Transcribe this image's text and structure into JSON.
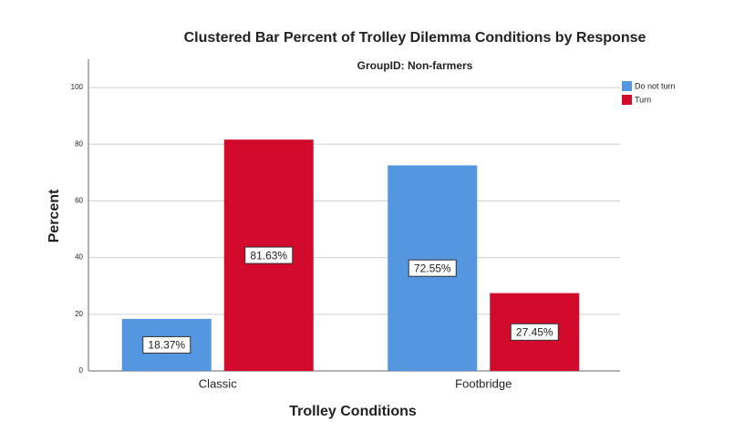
{
  "chart_data": {
    "type": "bar",
    "title": "Clustered Bar Percent of Trolley Dilemma Conditions by Response",
    "subtitle": "GroupID: Non-farmers",
    "x_label": "Trolley Conditions",
    "y_label": "Percent",
    "categories": [
      "Classic",
      "Footbridge"
    ],
    "series": [
      {
        "name": "Do not turn",
        "color": "#5596e0",
        "values": [
          18.37,
          72.55
        ],
        "value_labels": [
          "18.37%",
          "72.55%"
        ]
      },
      {
        "name": "Turn",
        "color": "#d20b2c",
        "values": [
          81.63,
          27.45
        ],
        "value_labels": [
          "81.63%",
          "27.45%"
        ]
      }
    ],
    "ylim": [
      0,
      110
    ],
    "yticks": [
      0,
      20,
      40,
      60,
      80,
      100
    ],
    "grid": true,
    "legend": "right"
  }
}
